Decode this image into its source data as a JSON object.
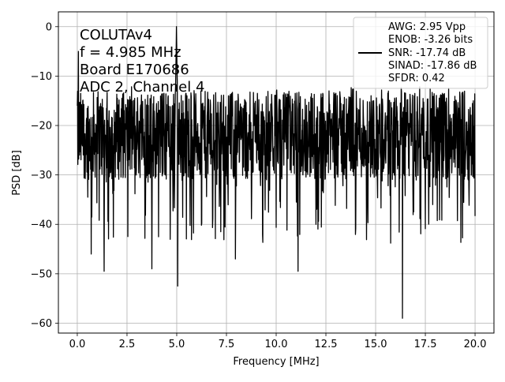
{
  "chart_data": {
    "type": "line",
    "title": "",
    "xlabel": "Frequency [MHz]",
    "ylabel": "PSD [dB]",
    "xlim": [
      -0.95,
      20.95
    ],
    "ylim": [
      -62,
      3
    ],
    "xticks": [
      0.0,
      2.5,
      5.0,
      7.5,
      10.0,
      12.5,
      15.0,
      17.5,
      20.0
    ],
    "xtick_labels": [
      "0.0",
      "2.5",
      "5.0",
      "7.5",
      "10.0",
      "12.5",
      "15.0",
      "17.5",
      "20.0"
    ],
    "yticks": [
      0,
      -10,
      -20,
      -30,
      -40,
      -50,
      -60
    ],
    "ytick_labels": [
      "0",
      "−10",
      "−20",
      "−30",
      "−40",
      "−50",
      "−60"
    ],
    "grid": true,
    "line_color": "#000000",
    "annotation": {
      "lines": [
        "COLUTAv4",
        "f = 4.985 MHz",
        "Board E170686",
        "ADC 2, Channel 4"
      ]
    },
    "legend": {
      "placement": "upper right",
      "entries": [
        "AWG: 2.95 Vpp",
        "ENOB: -3.26 bits",
        "SNR: -17.74 dB",
        "SINAD: -17.86 dB",
        "SFDR: 0.42"
      ]
    },
    "series": [
      {
        "color": "#000000",
        "tone_frequency": 4.985,
        "tone_peak_db": 0,
        "noise_floor_db": -22,
        "notable_dips": [
          {
            "x": 0.7,
            "y": -46
          },
          {
            "x": 1.35,
            "y": -49.5
          },
          {
            "x": 3.75,
            "y": -49
          },
          {
            "x": 5.05,
            "y": -52.5
          },
          {
            "x": 7.95,
            "y": -47
          },
          {
            "x": 11.1,
            "y": -49.5
          },
          {
            "x": 16.35,
            "y": -59
          }
        ]
      }
    ]
  }
}
